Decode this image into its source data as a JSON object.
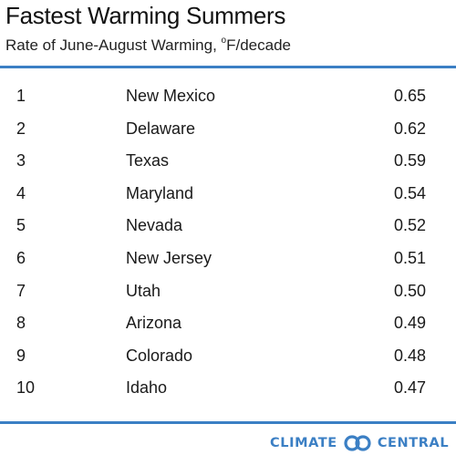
{
  "header": {
    "title": "Fastest Warming Summers",
    "subtitle_prefix": "Rate of June-August Warming, ",
    "subtitle_degree": "o",
    "subtitle_suffix": "F/decade"
  },
  "chart_data": {
    "type": "table",
    "title": "Fastest Warming Summers",
    "subtitle": "Rate of June-August Warming, °F/decade",
    "columns": [
      "",
      "",
      ""
    ],
    "rows": [
      {
        "rank": "1",
        "state": "New Mexico",
        "value": "0.65"
      },
      {
        "rank": "2",
        "state": "Delaware",
        "value": "0.62"
      },
      {
        "rank": "3",
        "state": "Texas",
        "value": "0.59"
      },
      {
        "rank": "4",
        "state": "Maryland",
        "value": "0.54"
      },
      {
        "rank": "5",
        "state": "Nevada",
        "value": "0.52"
      },
      {
        "rank": "6",
        "state": "New Jersey",
        "value": "0.51"
      },
      {
        "rank": "7",
        "state": "Utah",
        "value": "0.50"
      },
      {
        "rank": "8",
        "state": "Arizona",
        "value": "0.49"
      },
      {
        "rank": "9",
        "state": "Colorado",
        "value": "0.48"
      },
      {
        "rank": "10",
        "state": "Idaho",
        "value": "0.47"
      }
    ]
  },
  "brand": {
    "left_word": "CLIMATE",
    "right_word": "CENTRAL",
    "logo_icon": "climate-central-logo-icon",
    "color": "#3b7fc4"
  },
  "colors": {
    "rule": "#3b7fc4",
    "text": "#1a1a1a"
  }
}
